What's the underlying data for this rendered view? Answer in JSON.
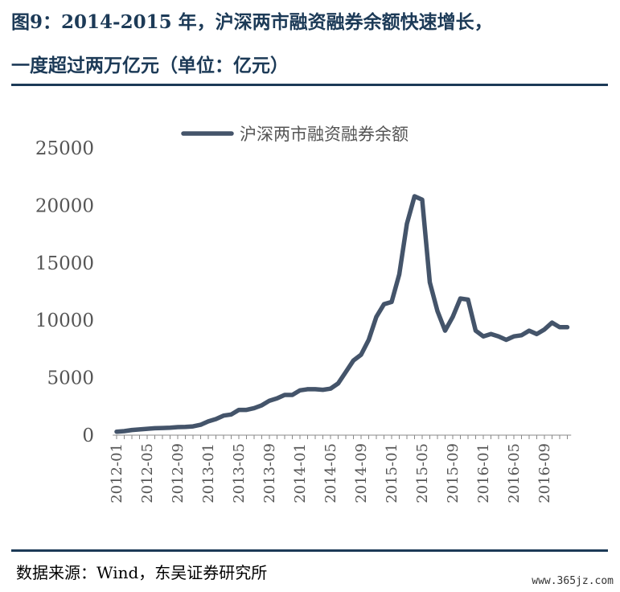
{
  "header": {
    "title_line1": "图9：2014-2015 年，沪深两市融资融券余额快速增长，",
    "title_line2": "一度超过两万亿元（单位：亿元）"
  },
  "footer": {
    "source": "数据来源：Wind，东吴证券研究所",
    "watermark": "www.365jz.com"
  },
  "colors": {
    "title": "#1c3a57",
    "line": "#44546a",
    "axis": "#888888"
  },
  "chart_data": {
    "type": "line",
    "title": "",
    "xlabel": "",
    "ylabel": "",
    "ylim": [
      0,
      25000
    ],
    "yticks": [
      "0",
      "5000",
      "10000",
      "15000",
      "20000",
      "25000"
    ],
    "xticks": [
      "2012-01",
      "2012-05",
      "2012-09",
      "2013-01",
      "2013-05",
      "2013-09",
      "2014-01",
      "2014-05",
      "2014-09",
      "2015-01",
      "2015-05",
      "2015-09",
      "2016-01",
      "2016-05",
      "2016-09"
    ],
    "legend_position": "top-center",
    "grid": false,
    "series": [
      {
        "name": "沪深两市融资融券余额",
        "x": [
          "2012-01",
          "2012-02",
          "2012-03",
          "2012-04",
          "2012-05",
          "2012-06",
          "2012-07",
          "2012-08",
          "2012-09",
          "2012-10",
          "2012-11",
          "2012-12",
          "2013-01",
          "2013-02",
          "2013-03",
          "2013-04",
          "2013-05",
          "2013-06",
          "2013-07",
          "2013-08",
          "2013-09",
          "2013-10",
          "2013-11",
          "2013-12",
          "2014-01",
          "2014-02",
          "2014-03",
          "2014-04",
          "2014-05",
          "2014-06",
          "2014-07",
          "2014-08",
          "2014-09",
          "2014-10",
          "2014-11",
          "2014-12",
          "2015-01",
          "2015-02",
          "2015-03",
          "2015-04",
          "2015-05",
          "2015-06",
          "2015-07",
          "2015-08",
          "2015-09",
          "2015-10",
          "2015-11",
          "2015-12",
          "2016-01",
          "2016-02",
          "2016-03",
          "2016-04",
          "2016-05",
          "2016-06",
          "2016-07",
          "2016-08",
          "2016-09",
          "2016-10",
          "2016-11",
          "2016-12"
        ],
        "values": [
          300,
          350,
          450,
          500,
          550,
          600,
          620,
          650,
          700,
          720,
          760,
          900,
          1200,
          1400,
          1700,
          1800,
          2200,
          2200,
          2350,
          2600,
          3000,
          3200,
          3500,
          3500,
          3900,
          4000,
          4000,
          3950,
          4050,
          4500,
          5500,
          6500,
          7000,
          8300,
          10300,
          11400,
          11600,
          14000,
          18400,
          20800,
          20500,
          13300,
          10800,
          9100,
          10300,
          11900,
          11800,
          9100,
          8600,
          8800,
          8600,
          8300,
          8600,
          8700,
          9100,
          8800,
          9200,
          9800,
          9400,
          9400
        ]
      }
    ]
  }
}
